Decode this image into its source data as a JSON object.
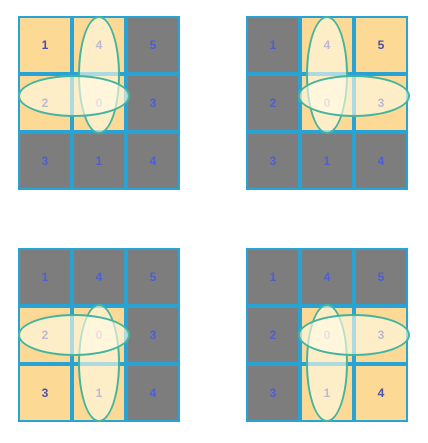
{
  "colors": {
    "light_cell": "#fcd994",
    "dark_cell": "#7d7d7d",
    "grid_line": "#29a3d3",
    "ellipse_stroke": "#45b49f",
    "number_text": "#4e5fd0"
  },
  "grids": [
    {
      "cells": [
        {
          "value": "1",
          "fill": "light"
        },
        {
          "value": "4",
          "fill": "light"
        },
        {
          "value": "5",
          "fill": "dark"
        },
        {
          "value": "2",
          "fill": "light"
        },
        {
          "value": "0",
          "fill": "light"
        },
        {
          "value": "3",
          "fill": "dark"
        },
        {
          "value": "3",
          "fill": "dark"
        },
        {
          "value": "1",
          "fill": "dark"
        },
        {
          "value": "4",
          "fill": "dark"
        }
      ],
      "ellipses": [
        {
          "orientation": "vertical",
          "span": "rows 0-1, column 1"
        },
        {
          "orientation": "horizontal",
          "span": "row 1, columns 0-1"
        }
      ]
    },
    {
      "cells": [
        {
          "value": "1",
          "fill": "dark"
        },
        {
          "value": "4",
          "fill": "light"
        },
        {
          "value": "5",
          "fill": "light"
        },
        {
          "value": "2",
          "fill": "dark"
        },
        {
          "value": "0",
          "fill": "light"
        },
        {
          "value": "3",
          "fill": "light"
        },
        {
          "value": "3",
          "fill": "dark"
        },
        {
          "value": "1",
          "fill": "dark"
        },
        {
          "value": "4",
          "fill": "dark"
        }
      ],
      "ellipses": [
        {
          "orientation": "vertical",
          "span": "rows 0-1, column 1"
        },
        {
          "orientation": "horizontal",
          "span": "row 1, columns 1-2"
        }
      ]
    },
    {
      "cells": [
        {
          "value": "1",
          "fill": "dark"
        },
        {
          "value": "4",
          "fill": "dark"
        },
        {
          "value": "5",
          "fill": "dark"
        },
        {
          "value": "2",
          "fill": "light"
        },
        {
          "value": "0",
          "fill": "light"
        },
        {
          "value": "3",
          "fill": "dark"
        },
        {
          "value": "3",
          "fill": "light"
        },
        {
          "value": "1",
          "fill": "light"
        },
        {
          "value": "4",
          "fill": "dark"
        }
      ],
      "ellipses": [
        {
          "orientation": "vertical",
          "span": "rows 1-2, column 1"
        },
        {
          "orientation": "horizontal",
          "span": "row 1, columns 0-1"
        }
      ]
    },
    {
      "cells": [
        {
          "value": "1",
          "fill": "dark"
        },
        {
          "value": "4",
          "fill": "dark"
        },
        {
          "value": "5",
          "fill": "dark"
        },
        {
          "value": "2",
          "fill": "dark"
        },
        {
          "value": "0",
          "fill": "light"
        },
        {
          "value": "3",
          "fill": "light"
        },
        {
          "value": "3",
          "fill": "dark"
        },
        {
          "value": "1",
          "fill": "light"
        },
        {
          "value": "4",
          "fill": "light"
        }
      ],
      "ellipses": [
        {
          "orientation": "vertical",
          "span": "rows 1-2, column 1"
        },
        {
          "orientation": "horizontal",
          "span": "row 1, columns 1-2"
        }
      ]
    }
  ]
}
